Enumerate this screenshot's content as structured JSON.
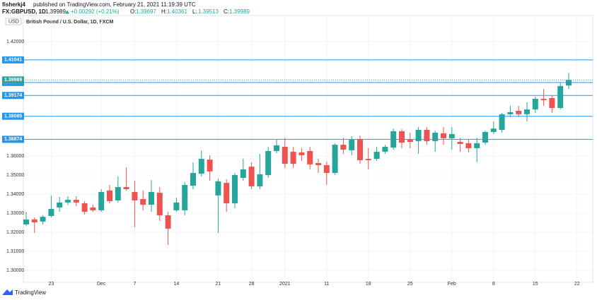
{
  "header": {
    "user": "fisherkj4",
    "published": "published on TradingView.com, February 21, 2021 11:19:39 UTC"
  },
  "chart_data": {
    "type": "candlestick",
    "symbol": "FX:GBPUSD, 1D",
    "change": "+0.00292 (+0.21%)",
    "ohlc_labels": [
      "O:",
      "H:",
      "L:",
      "C:"
    ],
    "title": "British Pound / U.S. Dollar, 1D, FXCM",
    "currency": "USD",
    "footer": "TradingView",
    "up_color": "#26a69a",
    "down_color": "#ef5350",
    "level_color": "#2196f3",
    "grid": true,
    "categories": [
      null,
      null,
      null,
      "23",
      null,
      null,
      null,
      null,
      null,
      "Dec",
      null,
      null,
      null,
      "7",
      null,
      null,
      null,
      null,
      "14",
      null,
      null,
      null,
      null,
      "21",
      null,
      null,
      null,
      "28",
      null,
      null,
      null,
      "2021",
      null,
      null,
      null,
      null,
      "11",
      null,
      null,
      null,
      null,
      "18",
      null,
      null,
      null,
      null,
      "25",
      null,
      null,
      null,
      null,
      "Feb",
      null,
      null,
      null,
      null,
      "8",
      null,
      null,
      null,
      null,
      "15",
      null,
      null,
      null,
      null,
      "22"
    ],
    "open": [
      1.3241,
      1.3267,
      1.3256,
      1.3285,
      1.333,
      1.3356,
      1.337,
      1.3352,
      1.333,
      1.3315,
      1.3419,
      1.3367,
      1.3437,
      1.3411,
      1.3374,
      1.3344,
      1.3407,
      1.3289,
      1.3315,
      1.3315,
      1.3444,
      1.3507,
      1.3581,
      1.3393,
      1.3459,
      1.3352,
      1.3485,
      1.3544,
      1.3441,
      1.35,
      1.3626,
      1.3648,
      1.3622,
      1.3619,
      1.3626,
      1.3563,
      1.3552,
      1.3511,
      1.3659,
      1.363,
      1.3689,
      1.3585,
      1.3585,
      1.3622,
      1.3644,
      1.373,
      1.3685,
      1.3678,
      1.3737,
      1.3678,
      1.3719,
      1.3693,
      1.3674,
      1.3667,
      1.3641,
      1.367,
      1.3726,
      1.3737,
      1.3819,
      1.3837,
      1.3819,
      1.3844,
      1.39,
      1.3904,
      1.3852,
      1.39697,
      null
    ],
    "high": [
      1.3307,
      1.3278,
      1.3289,
      1.3393,
      1.3385,
      1.3389,
      1.3389,
      1.3363,
      1.3344,
      1.3426,
      1.3448,
      1.3493,
      1.3541,
      1.347,
      1.3419,
      1.3474,
      1.3437,
      1.3307,
      1.3382,
      1.3463,
      1.3567,
      1.363,
      1.3604,
      1.3481,
      1.3478,
      1.3511,
      1.3585,
      1.3567,
      1.3611,
      1.3648,
      1.3685,
      1.3696,
      1.3648,
      1.3641,
      1.3648,
      1.3585,
      1.357,
      1.3667,
      1.3696,
      1.3704,
      1.3707,
      1.3641,
      1.3648,
      1.3659,
      1.3744,
      1.3741,
      1.3722,
      1.3752,
      1.3752,
      1.3733,
      1.3752,
      1.3752,
      1.3696,
      1.3685,
      1.3696,
      1.3733,
      1.3781,
      1.3826,
      1.3863,
      1.3863,
      1.3881,
      1.3911,
      1.3952,
      1.3919,
      1.3985,
      1.40361,
      null
    ],
    "low": [
      1.3233,
      1.3196,
      1.3241,
      1.3278,
      1.3307,
      1.3344,
      1.3337,
      1.3293,
      1.3307,
      1.3307,
      1.3352,
      1.3356,
      1.3419,
      1.3226,
      1.3315,
      1.3307,
      1.3259,
      1.3133,
      1.3307,
      1.3289,
      1.3426,
      1.3493,
      1.347,
      1.3196,
      1.3307,
      1.3326,
      1.347,
      1.3426,
      1.3426,
      1.3485,
      1.3615,
      1.3537,
      1.3537,
      1.3574,
      1.353,
      1.3511,
      1.3448,
      1.35,
      1.3611,
      1.3604,
      1.3559,
      1.353,
      1.3574,
      1.3611,
      1.3633,
      1.3641,
      1.3641,
      1.3611,
      1.3659,
      1.3622,
      1.3659,
      1.3633,
      1.3622,
      1.3619,
      1.3567,
      1.3659,
      1.3715,
      1.3722,
      1.3804,
      1.3804,
      1.3781,
      1.3826,
      1.3863,
      1.3826,
      1.3844,
      1.39513,
      null
    ],
    "close": [
      1.3267,
      1.3252,
      1.3281,
      1.3322,
      1.3356,
      1.337,
      1.3356,
      1.3307,
      1.3315,
      1.3411,
      1.3363,
      1.3437,
      1.3426,
      1.3367,
      1.3344,
      1.3411,
      1.3289,
      1.3219,
      1.3356,
      1.3448,
      1.3511,
      1.3585,
      1.3519,
      1.3467,
      1.3352,
      1.35,
      1.353,
      1.3441,
      1.3504,
      1.3626,
      1.3656,
      1.3559,
      1.3559,
      1.3604,
      1.3556,
      1.3552,
      1.3511,
      1.3659,
      1.3633,
      1.3685,
      1.3578,
      1.3578,
      1.3622,
      1.3648,
      1.373,
      1.367,
      1.3674,
      1.3737,
      1.3678,
      1.3722,
      1.3693,
      1.3715,
      1.3663,
      1.3641,
      1.3667,
      1.3726,
      1.3744,
      1.3819,
      1.383,
      1.3819,
      1.3844,
      1.39,
      1.3893,
      1.3852,
      1.3967,
      1.39989,
      null
    ],
    "levels": [
      1.41041,
      1.39857,
      1.39174,
      1.38085,
      1.36874
    ],
    "ylim": [
      1.2937,
      1.4337
    ],
    "yticks": [
      {
        "value": 1.3,
        "label": "1.30000"
      },
      {
        "value": 1.31,
        "label": "1.31000"
      },
      {
        "value": 1.32,
        "label": "1.32000"
      },
      {
        "value": 1.33,
        "label": "1.33000"
      },
      {
        "value": 1.34,
        "label": "1.34000"
      },
      {
        "value": 1.35,
        "label": "1.35000"
      },
      {
        "value": 1.36,
        "label": "1.36000"
      },
      {
        "value": 1.42,
        "label": "1.42000"
      }
    ]
  }
}
